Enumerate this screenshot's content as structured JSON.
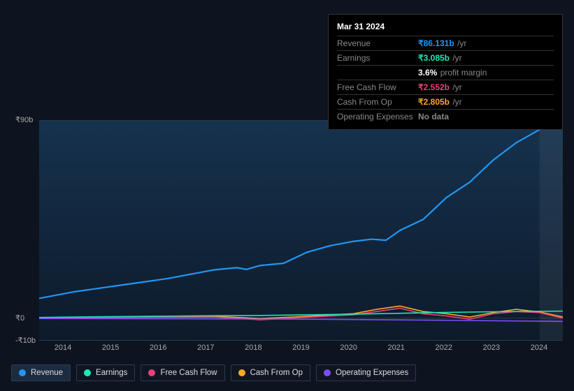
{
  "tooltip": {
    "date": "Mar 31 2024",
    "rows": [
      {
        "label": "Revenue",
        "value": "₹86.131b",
        "unit": "/yr",
        "color": "#2196f3"
      },
      {
        "label": "Earnings",
        "value": "₹3.085b",
        "unit": "/yr",
        "color": "#1de9b6"
      },
      {
        "label": "",
        "value": "3.6%",
        "unit": "profit margin",
        "color": "#ffffff",
        "indent": true
      },
      {
        "label": "Free Cash Flow",
        "value": "₹2.552b",
        "unit": "/yr",
        "color": "#ec407a"
      },
      {
        "label": "Cash From Op",
        "value": "₹2.805b",
        "unit": "/yr",
        "color": "#ffa726"
      },
      {
        "label": "Operating Expenses",
        "value": "No data",
        "unit": "",
        "color": "#888888"
      }
    ]
  },
  "yAxis": {
    "labels": [
      {
        "text": "₹90b",
        "v": 90
      },
      {
        "text": "₹0",
        "v": 0
      },
      {
        "text": "-₹10b",
        "v": -10
      }
    ],
    "min": -10,
    "max": 90
  },
  "xAxis": {
    "years": [
      "2014",
      "2015",
      "2016",
      "2017",
      "2018",
      "2019",
      "2020",
      "2021",
      "2022",
      "2023",
      "2024"
    ],
    "start": 2013.25,
    "end": 2024.5
  },
  "highlight_from_year": 2024.0,
  "series": [
    {
      "name": "Revenue",
      "color": "#2196f3",
      "width": 2.2,
      "points": [
        [
          2013.25,
          9
        ],
        [
          2014,
          12
        ],
        [
          2015,
          15
        ],
        [
          2016,
          18
        ],
        [
          2017,
          22
        ],
        [
          2017.5,
          23
        ],
        [
          2017.7,
          22.2
        ],
        [
          2018,
          24
        ],
        [
          2018.5,
          25
        ],
        [
          2019,
          30
        ],
        [
          2019.5,
          33
        ],
        [
          2020,
          35
        ],
        [
          2020.4,
          36
        ],
        [
          2020.7,
          35.5
        ],
        [
          2021,
          40
        ],
        [
          2021.5,
          45
        ],
        [
          2022,
          55
        ],
        [
          2022.5,
          62
        ],
        [
          2023,
          72
        ],
        [
          2023.5,
          80
        ],
        [
          2024,
          86
        ],
        [
          2024.5,
          90
        ]
      ]
    },
    {
      "name": "Cash From Op",
      "color": "#ffa726",
      "width": 1.6,
      "points": [
        [
          2013.25,
          0.2
        ],
        [
          2014,
          0.3
        ],
        [
          2015,
          0.5
        ],
        [
          2016,
          0.6
        ],
        [
          2017,
          0.8
        ],
        [
          2018,
          -0.2
        ],
        [
          2019,
          0.8
        ],
        [
          2020,
          2.0
        ],
        [
          2020.5,
          4.0
        ],
        [
          2021,
          5.5
        ],
        [
          2021.5,
          3.0
        ],
        [
          2022,
          2.0
        ],
        [
          2022.5,
          0.5
        ],
        [
          2023,
          2.5
        ],
        [
          2023.5,
          4.0
        ],
        [
          2024,
          2.8
        ],
        [
          2024.5,
          0.5
        ]
      ]
    },
    {
      "name": "Free Cash Flow",
      "color": "#ec407a",
      "width": 1.6,
      "points": [
        [
          2013.25,
          0.0
        ],
        [
          2014,
          0.1
        ],
        [
          2015,
          0.3
        ],
        [
          2016,
          0.4
        ],
        [
          2017,
          0.5
        ],
        [
          2018,
          -0.8
        ],
        [
          2019,
          0.4
        ],
        [
          2020,
          1.5
        ],
        [
          2020.5,
          3.0
        ],
        [
          2021,
          4.5
        ],
        [
          2021.5,
          2.0
        ],
        [
          2022,
          1.0
        ],
        [
          2022.5,
          -0.5
        ],
        [
          2023,
          2.0
        ],
        [
          2023.5,
          3.0
        ],
        [
          2024,
          2.5
        ],
        [
          2024.5,
          0.0
        ]
      ]
    },
    {
      "name": "Earnings",
      "color": "#1de9b6",
      "width": 1.6,
      "points": [
        [
          2013.25,
          0.3
        ],
        [
          2014,
          0.5
        ],
        [
          2015,
          0.7
        ],
        [
          2016,
          0.9
        ],
        [
          2017,
          1.1
        ],
        [
          2018,
          1.2
        ],
        [
          2019,
          1.5
        ],
        [
          2020,
          1.8
        ],
        [
          2021,
          2.2
        ],
        [
          2022,
          2.6
        ],
        [
          2023,
          2.9
        ],
        [
          2024,
          3.1
        ],
        [
          2024.5,
          3.2
        ]
      ]
    },
    {
      "name": "Operating Expenses",
      "color": "#7c4dff",
      "width": 1.6,
      "points": [
        [
          2013.25,
          -0.2
        ],
        [
          2016,
          -0.3
        ],
        [
          2019,
          -0.5
        ],
        [
          2022,
          -1.0
        ],
        [
          2024.5,
          -1.5
        ]
      ]
    }
  ],
  "legend": [
    {
      "label": "Revenue",
      "color": "#2196f3",
      "active": true
    },
    {
      "label": "Earnings",
      "color": "#1de9b6",
      "active": false
    },
    {
      "label": "Free Cash Flow",
      "color": "#ec407a",
      "active": false
    },
    {
      "label": "Cash From Op",
      "color": "#ffa726",
      "active": false
    },
    {
      "label": "Operating Expenses",
      "color": "#7c4dff",
      "active": false
    }
  ],
  "colors": {
    "background": "#0d1420",
    "plot_grad_top": "#16324e",
    "plot_grad_bot": "#0d1a2a",
    "grid": "#2a3a4d",
    "text_muted": "#888888"
  }
}
